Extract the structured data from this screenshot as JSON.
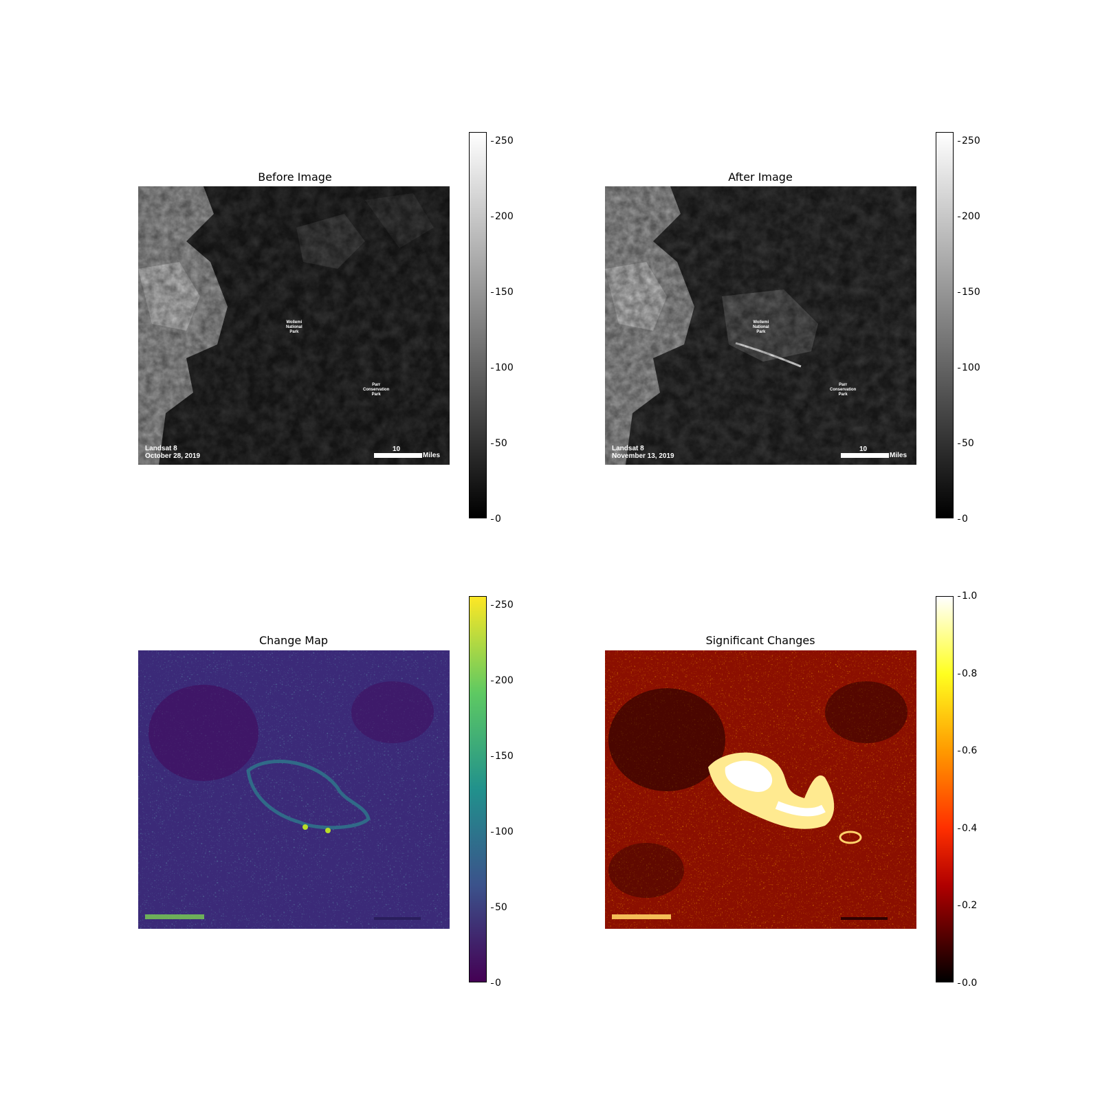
{
  "panels": {
    "before": {
      "title": "Before Image",
      "satellite": "Landsat 8",
      "date": "October 28, 2019",
      "place1": "Wollemi\nNational\nPark",
      "place2": "Parr\nConservation\nPark",
      "scale_value": "10",
      "scale_unit": "Miles",
      "colormap": "gray",
      "colorbar_ticks": [
        "0",
        "50",
        "100",
        "150",
        "200",
        "250"
      ],
      "colorbar_range": [
        0,
        255
      ]
    },
    "after": {
      "title": "After Image",
      "satellite": "Landsat 8",
      "date": "November 13, 2019",
      "place1": "Wollemi\nNational\nPark",
      "place2": "Parr\nConservation\nPark",
      "scale_value": "10",
      "scale_unit": "Miles",
      "colormap": "gray",
      "colorbar_ticks": [
        "0",
        "50",
        "100",
        "150",
        "200",
        "250"
      ],
      "colorbar_range": [
        0,
        255
      ]
    },
    "change": {
      "title": "Change Map",
      "colormap": "viridis",
      "colorbar_ticks": [
        "0",
        "50",
        "100",
        "150",
        "200",
        "250"
      ],
      "colorbar_range": [
        0,
        255
      ]
    },
    "significant": {
      "title": "Significant Changes",
      "colormap": "hot",
      "colorbar_ticks": [
        "0.0",
        "0.2",
        "0.4",
        "0.6",
        "0.8",
        "1.0"
      ],
      "colorbar_range": [
        0,
        1
      ]
    }
  },
  "colors": {
    "viridis_low": "#440154",
    "viridis_high": "#fde725",
    "hot_low": "#000000",
    "hot_high": "#ffffff"
  }
}
